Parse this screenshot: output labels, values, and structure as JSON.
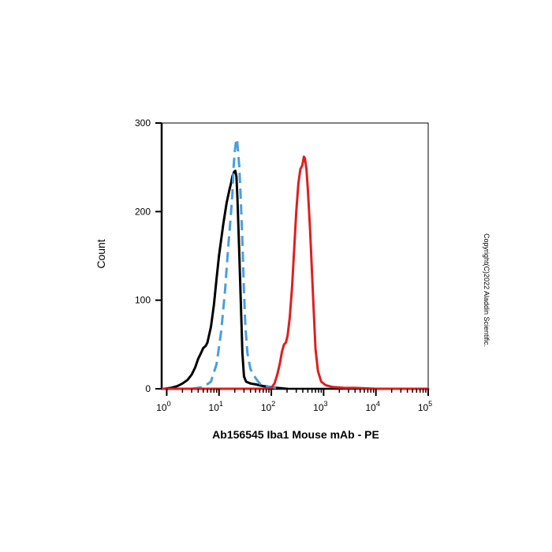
{
  "chart_data": {
    "type": "line",
    "title": "",
    "xlabel": "Ab156545 Iba1 Mouse mAb - PE",
    "ylabel": "Count",
    "x_scale": "log",
    "xlim": [
      0.8,
      100000
    ],
    "ylim": [
      0,
      300
    ],
    "x_ticks": [
      {
        "value": 1,
        "base": "10",
        "exp": "0"
      },
      {
        "value": 10,
        "base": "10",
        "exp": "1"
      },
      {
        "value": 100,
        "base": "10",
        "exp": "2"
      },
      {
        "value": 1000,
        "base": "10",
        "exp": "3"
      },
      {
        "value": 10000,
        "base": "10",
        "exp": "4"
      },
      {
        "value": 100000,
        "base": "10",
        "exp": "5"
      }
    ],
    "y_ticks": [
      0,
      100,
      200,
      300
    ],
    "grid": false,
    "legend": "none",
    "series": [
      {
        "color": "#000000",
        "style": "solid",
        "points": [
          [
            0.9,
            0
          ],
          [
            1.2,
            1
          ],
          [
            1.6,
            3
          ],
          [
            2.0,
            6
          ],
          [
            2.5,
            10
          ],
          [
            3.0,
            16
          ],
          [
            3.5,
            24
          ],
          [
            4.0,
            34
          ],
          [
            4.5,
            40
          ],
          [
            5.0,
            46
          ],
          [
            5.5,
            48
          ],
          [
            6.0,
            52
          ],
          [
            7.0,
            70
          ],
          [
            8.0,
            95
          ],
          [
            9.0,
            125
          ],
          [
            10.0,
            150
          ],
          [
            12.0,
            185
          ],
          [
            14.0,
            210
          ],
          [
            16.0,
            226
          ],
          [
            17.0,
            232
          ],
          [
            18.0,
            240
          ],
          [
            19.5,
            245
          ],
          [
            20.5,
            246
          ],
          [
            21.5,
            240
          ],
          [
            22.5,
            215
          ],
          [
            24.0,
            165
          ],
          [
            26.0,
            100
          ],
          [
            28.0,
            40
          ],
          [
            30.0,
            14
          ],
          [
            33.0,
            8
          ],
          [
            40.0,
            6
          ],
          [
            50.0,
            5
          ],
          [
            70.0,
            3
          ],
          [
            100.0,
            2
          ],
          [
            130.0,
            1
          ],
          [
            200.0,
            0
          ]
        ]
      },
      {
        "color": "#4a9ede",
        "style": "dashed",
        "points": [
          [
            3.0,
            0
          ],
          [
            5.0,
            2
          ],
          [
            7.0,
            8
          ],
          [
            9.0,
            28
          ],
          [
            11.0,
            65
          ],
          [
            13.0,
            110
          ],
          [
            15.0,
            160
          ],
          [
            16.5,
            190
          ],
          [
            18.0,
            220
          ],
          [
            19.0,
            250
          ],
          [
            20.0,
            268
          ],
          [
            21.0,
            278
          ],
          [
            22.0,
            282
          ],
          [
            23.0,
            270
          ],
          [
            24.5,
            250
          ],
          [
            26.0,
            215
          ],
          [
            28.0,
            165
          ],
          [
            30.0,
            110
          ],
          [
            32.0,
            70
          ],
          [
            35.0,
            40
          ],
          [
            40.0,
            22
          ],
          [
            50.0,
            12
          ],
          [
            60.0,
            6
          ],
          [
            80.0,
            3
          ],
          [
            100.0,
            2
          ],
          [
            120.0,
            1
          ],
          [
            140.0,
            0
          ]
        ]
      },
      {
        "color": "#e01e1e",
        "style": "solid",
        "points": [
          [
            0.8,
            0
          ],
          [
            10.0,
            0
          ],
          [
            70.0,
            0
          ],
          [
            100.0,
            1
          ],
          [
            115.0,
            6
          ],
          [
            130.0,
            16
          ],
          [
            145.0,
            28
          ],
          [
            160.0,
            42
          ],
          [
            175.0,
            50
          ],
          [
            190.0,
            52
          ],
          [
            205.0,
            60
          ],
          [
            225.0,
            80
          ],
          [
            250.0,
            115
          ],
          [
            275.0,
            160
          ],
          [
            300.0,
            200
          ],
          [
            330.0,
            232
          ],
          [
            360.0,
            248
          ],
          [
            390.0,
            252
          ],
          [
            420.0,
            262
          ],
          [
            440.0,
            260
          ],
          [
            470.0,
            248
          ],
          [
            500.0,
            225
          ],
          [
            550.0,
            180
          ],
          [
            600.0,
            130
          ],
          [
            650.0,
            85
          ],
          [
            700.0,
            45
          ],
          [
            780.0,
            20
          ],
          [
            900.0,
            8
          ],
          [
            1100.0,
            4
          ],
          [
            1500.0,
            2
          ],
          [
            2500.0,
            1
          ],
          [
            4000.0,
            1
          ],
          [
            10000.0,
            0
          ],
          [
            100000.0,
            0
          ]
        ]
      }
    ]
  },
  "copyright_text": "Copyright(C)2022 Aladdin Scientific."
}
